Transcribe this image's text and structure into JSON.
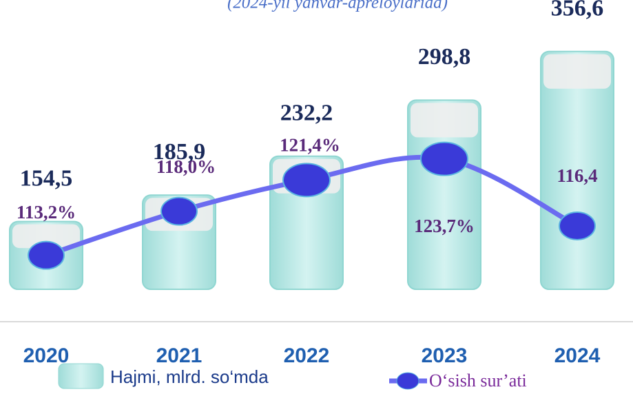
{
  "chart_data": {
    "type": "bar",
    "subtitle": "(2024-yil yanvar-apreloylarida)",
    "categories": [
      "2020",
      "2021",
      "2022",
      "2023",
      "2024"
    ],
    "series": [
      {
        "name": "Hajmi, mlrd. so‘mda",
        "color": "#a6e3df",
        "values": [
          154.5,
          185.9,
          232.2,
          298.8,
          356.6
        ],
        "value_labels": [
          "154,5",
          "185,9",
          "232,2",
          "298,8",
          "356,6"
        ]
      },
      {
        "name": "O‘sish sur’ati",
        "color": "#3a3ad8",
        "axis": "y2",
        "values": [
          113.2,
          118.0,
          121.4,
          123.7,
          116.4
        ],
        "value_labels": [
          "113,2%",
          "118,0%",
          "121,4%",
          "123,7%",
          "116,4"
        ]
      }
    ],
    "ylim": [
      74,
      385
    ],
    "y2lim": [
      108,
      126
    ]
  }
}
